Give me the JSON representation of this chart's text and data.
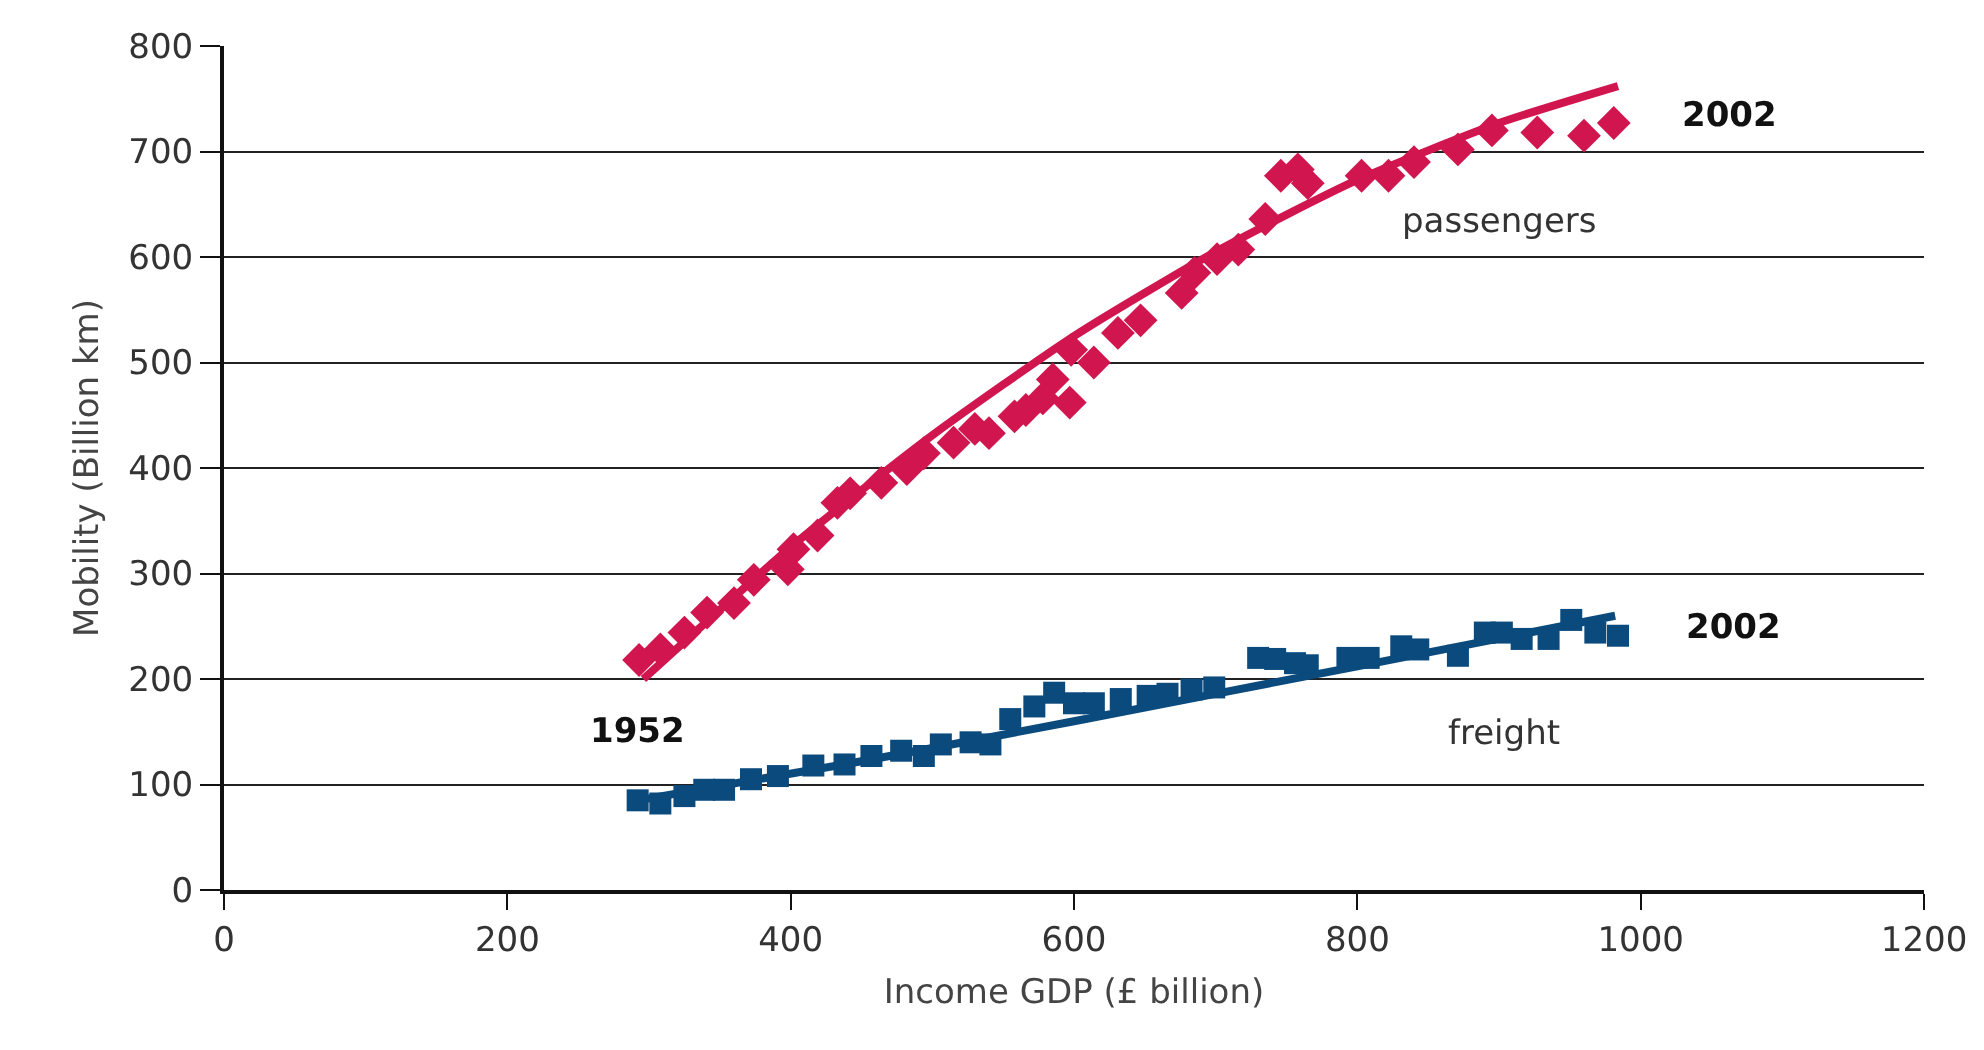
{
  "chart_data": {
    "type": "scatter",
    "xlabel": "Income GDP (£ billion)",
    "ylabel": "Mobility (Billion km)",
    "xlim": [
      0,
      1200
    ],
    "xticks": [
      0,
      200,
      400,
      600,
      800,
      1000,
      1200
    ],
    "ylim": [
      0,
      800
    ],
    "yticks": [
      0,
      100,
      200,
      300,
      400,
      500,
      600,
      700,
      800
    ],
    "grid": "y",
    "legend": false,
    "series": [
      {
        "name": "passengers",
        "marker": "diamond",
        "color": "#d1164f",
        "x": [
          293,
          308,
          325,
          341,
          360,
          374,
          398,
          402,
          419,
          433,
          442,
          464,
          482,
          494,
          515,
          530,
          540,
          558,
          566,
          578,
          585,
          597,
          598,
          614,
          631,
          647,
          676,
          685,
          701,
          716,
          735,
          746,
          758,
          765,
          803,
          822,
          840,
          871,
          895,
          927,
          960,
          981
        ],
        "values": [
          218,
          228,
          244,
          263,
          272,
          294,
          304,
          323,
          336,
          367,
          376,
          386,
          399,
          414,
          424,
          437,
          433,
          449,
          455,
          466,
          484,
          462,
          512,
          500,
          528,
          540,
          566,
          585,
          598,
          607,
          636,
          677,
          683,
          670,
          677,
          677,
          690,
          702,
          720,
          718,
          715,
          727
        ]
      },
      {
        "type": "line",
        "color": "#d1164f",
        "x": [
          296,
          400,
          500,
          600,
          700,
          800,
          900,
          984
        ],
        "values": [
          200,
          325,
          431,
          525,
          605,
          673,
          727,
          762
        ]
      },
      {
        "name": "freight",
        "marker": "square",
        "color": "#0b4a7d",
        "x": [
          292,
          308,
          325,
          339,
          353,
          372,
          391,
          416,
          438,
          457,
          478,
          494,
          506,
          527,
          541,
          555,
          572,
          586,
          600,
          614,
          633,
          652,
          666,
          683,
          699,
          730,
          742,
          756,
          765,
          793,
          808,
          831,
          843,
          871,
          890,
          902,
          916,
          935,
          951,
          968,
          984
        ],
        "values": [
          85,
          82,
          89,
          95,
          95,
          105,
          108,
          118,
          119,
          127,
          132,
          127,
          138,
          140,
          138,
          162,
          174,
          187,
          177,
          177,
          181,
          184,
          186,
          190,
          192,
          220,
          219,
          215,
          213,
          220,
          220,
          231,
          228,
          222,
          244,
          244,
          238,
          238,
          256,
          244,
          241
        ]
      },
      {
        "type": "line",
        "color": "#0b4a7d",
        "x": [
          292,
          450,
          600,
          800,
          982
        ],
        "values": [
          85,
          122,
          160,
          212,
          260
        ]
      }
    ],
    "annotations": [
      {
        "text": "2002",
        "x": 981,
        "y": 727
      },
      {
        "text": "2002",
        "x": 984,
        "y": 241
      },
      {
        "text": "1952",
        "x": 292,
        "y": 85
      }
    ]
  }
}
